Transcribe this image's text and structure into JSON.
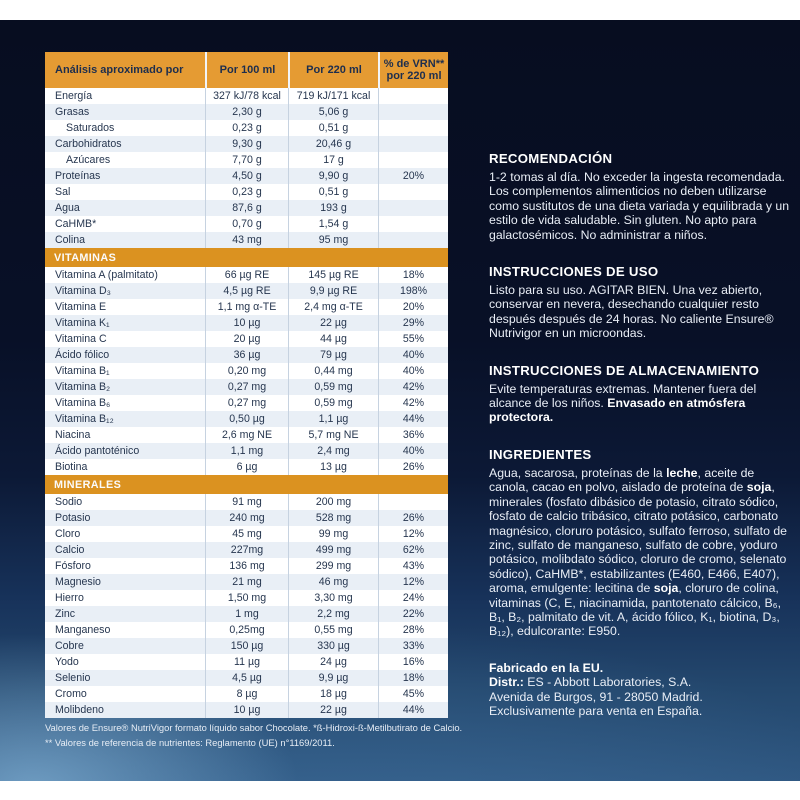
{
  "table": {
    "header": {
      "col1": "Análisis aproximado por",
      "col2": "Por 100 ml",
      "col3": "Por 220 ml",
      "col4_line1": "% de VRN**",
      "col4_line2": "por 220 ml"
    },
    "sections": [
      {
        "band": null,
        "rows": [
          {
            "label": "Energía",
            "per100": "327 kJ/78 kcal",
            "per220": "719 kJ/171 kcal",
            "vrn": "",
            "indent": false
          },
          {
            "label": "Grasas",
            "per100": "2,30 g",
            "per220": "5,06 g",
            "vrn": "",
            "indent": false
          },
          {
            "label": "Saturados",
            "per100": "0,23 g",
            "per220": "0,51 g",
            "vrn": "",
            "indent": true
          },
          {
            "label": "Carbohidratos",
            "per100": "9,30 g",
            "per220": "20,46 g",
            "vrn": "",
            "indent": false
          },
          {
            "label": "Azúcares",
            "per100": "7,70 g",
            "per220": "17 g",
            "vrn": "",
            "indent": true
          },
          {
            "label": "Proteínas",
            "per100": "4,50 g",
            "per220": "9,90 g",
            "vrn": "20%",
            "indent": false
          },
          {
            "label": "Sal",
            "per100": "0,23 g",
            "per220": "0,51 g",
            "vrn": "",
            "indent": false
          },
          {
            "label": "Agua",
            "per100": "87,6 g",
            "per220": "193 g",
            "vrn": "",
            "indent": false
          },
          {
            "label": "CaHMB*",
            "per100": "0,70 g",
            "per220": "1,54 g",
            "vrn": "",
            "indent": false
          },
          {
            "label": "Colina",
            "per100": "43 mg",
            "per220": "95 mg",
            "vrn": "",
            "indent": false
          }
        ]
      },
      {
        "band": "VITAMINAS",
        "rows": [
          {
            "label": "Vitamina A (palmitato)",
            "per100": "66 µg RE",
            "per220": "145 µg RE",
            "vrn": "18%",
            "indent": false
          },
          {
            "label": "Vitamina D₃",
            "per100": "4,5 µg RE",
            "per220": "9,9 µg RE",
            "vrn": "198%",
            "indent": false
          },
          {
            "label": "Vitamina E",
            "per100": "1,1 mg α-TE",
            "per220": "2,4 mg α-TE",
            "vrn": "20%",
            "indent": false
          },
          {
            "label": "Vitamina K₁",
            "per100": "10 µg",
            "per220": "22 µg",
            "vrn": "29%",
            "indent": false
          },
          {
            "label": "Vitamina C",
            "per100": "20 µg",
            "per220": "44 µg",
            "vrn": "55%",
            "indent": false
          },
          {
            "label": "Ácido fólico",
            "per100": "36 µg",
            "per220": "79 µg",
            "vrn": "40%",
            "indent": false
          },
          {
            "label": "Vitamina B₁",
            "per100": "0,20 mg",
            "per220": "0,44 mg",
            "vrn": "40%",
            "indent": false
          },
          {
            "label": "Vitamina B₂",
            "per100": "0,27 mg",
            "per220": "0,59 mg",
            "vrn": "42%",
            "indent": false
          },
          {
            "label": "Vitamina B₆",
            "per100": "0,27 mg",
            "per220": "0,59 mg",
            "vrn": "42%",
            "indent": false
          },
          {
            "label": "Vitamina B₁₂",
            "per100": "0,50 µg",
            "per220": "1,1 µg",
            "vrn": "44%",
            "indent": false
          },
          {
            "label": "Niacina",
            "per100": "2,6 mg NE",
            "per220": "5,7 mg NE",
            "vrn": "36%",
            "indent": false
          },
          {
            "label": "Ácido pantoténico",
            "per100": "1,1 mg",
            "per220": "2,4 mg",
            "vrn": "40%",
            "indent": false
          },
          {
            "label": "Biotina",
            "per100": "6 µg",
            "per220": "13 µg",
            "vrn": "26%",
            "indent": false
          }
        ]
      },
      {
        "band": "MINERALES",
        "rows": [
          {
            "label": "Sodio",
            "per100": "91 mg",
            "per220": "200 mg",
            "vrn": "",
            "indent": false
          },
          {
            "label": "Potasio",
            "per100": "240 mg",
            "per220": "528 mg",
            "vrn": "26%",
            "indent": false
          },
          {
            "label": "Cloro",
            "per100": "45 mg",
            "per220": "99 mg",
            "vrn": "12%",
            "indent": false
          },
          {
            "label": "Calcio",
            "per100": "227mg",
            "per220": "499 mg",
            "vrn": "62%",
            "indent": false
          },
          {
            "label": "Fósforo",
            "per100": "136 mg",
            "per220": "299 mg",
            "vrn": "43%",
            "indent": false
          },
          {
            "label": "Magnesio",
            "per100": "21 mg",
            "per220": "46 mg",
            "vrn": "12%",
            "indent": false
          },
          {
            "label": "Hierro",
            "per100": "1,50 mg",
            "per220": "3,30 mg",
            "vrn": "24%",
            "indent": false
          },
          {
            "label": "Zinc",
            "per100": "1 mg",
            "per220": "2,2 mg",
            "vrn": "22%",
            "indent": false
          },
          {
            "label": "Manganeso",
            "per100": "0,25mg",
            "per220": "0,55 mg",
            "vrn": "28%",
            "indent": false
          },
          {
            "label": "Cobre",
            "per100": "150 µg",
            "per220": "330 µg",
            "vrn": "33%",
            "indent": false
          },
          {
            "label": "Yodo",
            "per100": "11 µg",
            "per220": "24 µg",
            "vrn": "16%",
            "indent": false
          },
          {
            "label": "Selenio",
            "per100": "4,5 µg",
            "per220": "9,9 µg",
            "vrn": "18%",
            "indent": false
          },
          {
            "label": "Cromo",
            "per100": "8 µg",
            "per220": "18 µg",
            "vrn": "45%",
            "indent": false
          },
          {
            "label": "Molibdeno",
            "per100": "10 µg",
            "per220": "22 µg",
            "vrn": "44%",
            "indent": false
          }
        ]
      }
    ]
  },
  "footnotes": {
    "line1": "Valores de Ensure® NutriVigor formato líquido sabor Chocolate. *ß-Hidroxi-ß-Metilbutirato de Calcio.",
    "line2": "** Valores de referencia de nutrientes: Reglamento (UE) n°1169/2011."
  },
  "right_column": {
    "sections": [
      {
        "heading": "RECOMENDACIÓN",
        "segments": [
          {
            "t": "1-2 tomas al día. No exceder la ingesta recomendada. Los complementos alimenticios no deben utilizarse como sustitutos de una dieta variada y equilibrada y un estilo de vida saludable. Sin gluten. No apto para galactosémicos. No administrar a niños."
          }
        ]
      },
      {
        "heading": "INSTRUCCIONES DE USO",
        "segments": [
          {
            "t": "Listo para su uso. AGITAR BIEN. Una vez abierto, conservar en nevera, desechando cualquier resto después después de 24 horas. No caliente Ensure® Nutrivigor en un microondas."
          }
        ]
      },
      {
        "heading": "INSTRUCCIONES DE ALMACENAMIENTO",
        "segments": [
          {
            "t": "Evite temperaturas extremas. Mantener fuera del alcance de los niños. "
          },
          {
            "t": "Envasado en atmósfera protectora.",
            "b": true
          }
        ]
      },
      {
        "heading": "INGREDIENTES",
        "segments": [
          {
            "t": "Agua, sacarosa, proteínas de la "
          },
          {
            "t": "leche",
            "b": true
          },
          {
            "t": ", aceite de canola, cacao en polvo, aislado de proteína de "
          },
          {
            "t": "soja",
            "b": true
          },
          {
            "t": ", minerales (fosfato dibásico de potasio, citrato sódico, fosfato de calcio tribásico, citrato potásico, carbonato magnésico, cloruro potásico, sulfato ferroso, sulfato de zinc, sulfato de manganeso, sulfato de cobre, yoduro potásico, molibdato sódico, cloruro de cromo, selenato sódico), CaHMB*, estabilizantes (E460, E466, E407), aroma, emulgente: lecitina de "
          },
          {
            "t": "soja",
            "b": true
          },
          {
            "t": ", cloruro de colina, vitaminas (C, E, niacinamida, pantotenato cálcico, B₆, B₁, B₂, palmitato de vit. A, ácido fólico, K₁, biotina, D₃, B₁₂), edulcorante: E950."
          }
        ]
      },
      {
        "heading": null,
        "segments": [
          {
            "t": "Fabricado en la EU.",
            "b": true
          },
          {
            "br": true
          },
          {
            "t": "Distr.:",
            "b": true
          },
          {
            "t": " ES - Abbott Laboratories, S.A."
          },
          {
            "br": true
          },
          {
            "t": "Avenida de Burgos, 91 - 28050 Madrid."
          },
          {
            "br": true
          },
          {
            "t": "Exclusivamente para venta en España."
          }
        ]
      }
    ]
  }
}
